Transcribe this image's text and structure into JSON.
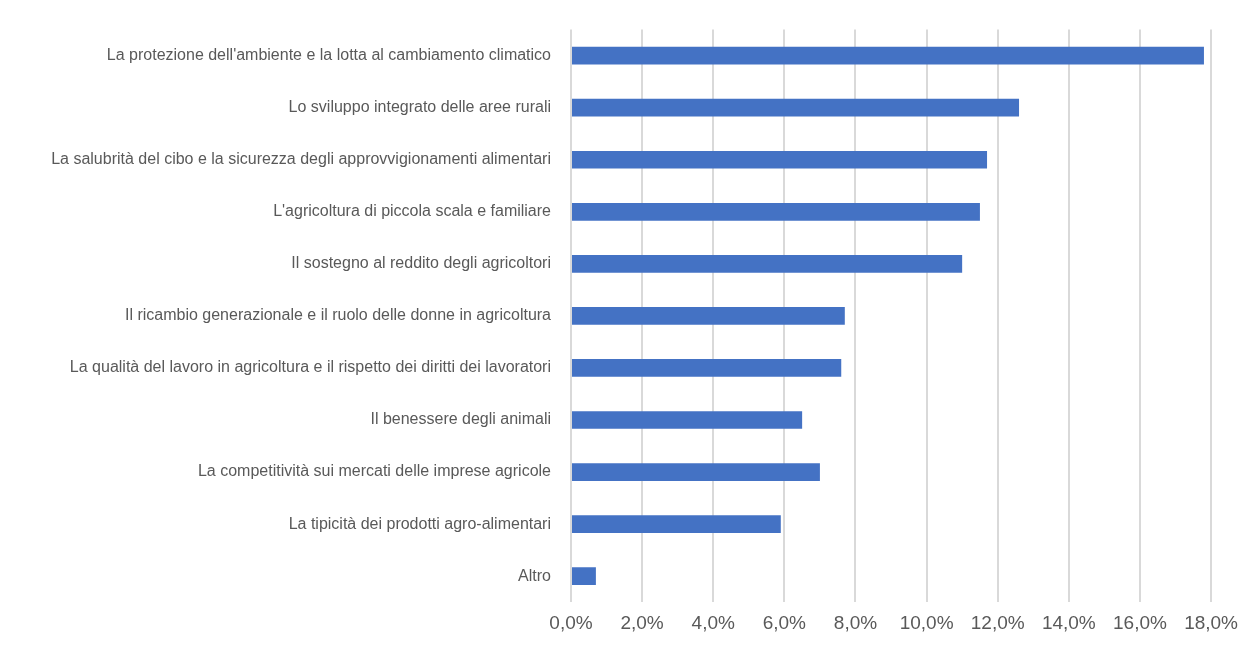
{
  "chart_data": {
    "type": "bar",
    "orientation": "horizontal",
    "categories": [
      "La protezione dell'ambiente e la lotta al cambiamento climatico",
      "Lo sviluppo integrato delle aree rurali",
      "La salubrità del cibo e la sicurezza degli approvvigionamenti alimentari",
      "L'agricoltura di piccola scala e familiare",
      "Il sostegno al reddito degli agricoltori",
      "Il ricambio generazionale e il ruolo delle donne in agricoltura",
      "La qualità del lavoro in agricoltura e il rispetto dei diritti dei lavoratori",
      "Il benessere degli animali",
      "La competitività sui mercati delle imprese agricole",
      "La tipicità dei prodotti agro-alimentari",
      "Altro"
    ],
    "values": [
      17.8,
      12.6,
      11.7,
      11.5,
      11.0,
      7.7,
      7.6,
      6.5,
      7.0,
      5.9,
      0.7
    ],
    "color": "#4472c4",
    "xlim": [
      0,
      18
    ],
    "xticks": [
      {
        "value": 0,
        "label": "0,0%"
      },
      {
        "value": 2,
        "label": "2,0%"
      },
      {
        "value": 4,
        "label": "4,0%"
      },
      {
        "value": 6,
        "label": "6,0%"
      },
      {
        "value": 8,
        "label": "8,0%"
      },
      {
        "value": 10,
        "label": "10,0%"
      },
      {
        "value": 12,
        "label": "12,0%"
      },
      {
        "value": 14,
        "label": "14,0%"
      },
      {
        "value": 16,
        "label": "16,0%"
      },
      {
        "value": 18,
        "label": "18,0%"
      }
    ],
    "grid": "x",
    "legend": false
  }
}
